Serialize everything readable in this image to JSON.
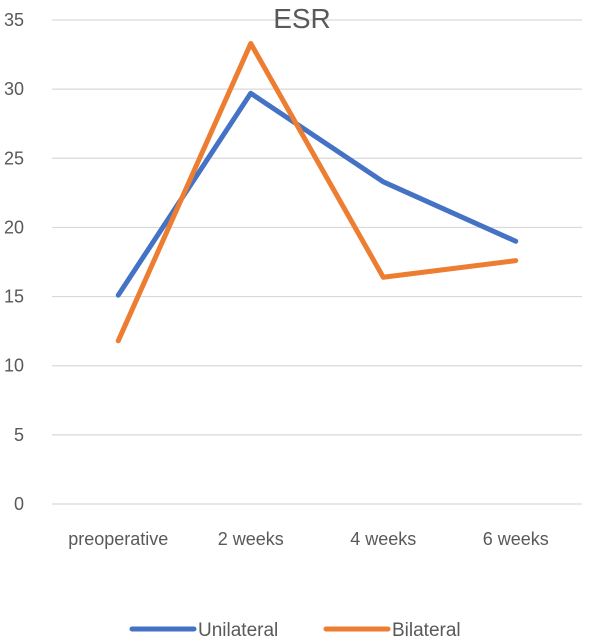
{
  "chart_data": {
    "type": "line",
    "title": "ESR",
    "xlabel": "",
    "ylabel": "",
    "categories": [
      "preoperative",
      "2 weeks",
      "4 weeks",
      "6 weeks"
    ],
    "series": [
      {
        "name": "Unilateral",
        "values": [
          15.1,
          29.7,
          23.3,
          19.0
        ],
        "color": "#4472c4"
      },
      {
        "name": "Bilateral",
        "values": [
          11.8,
          33.3,
          16.4,
          17.6
        ],
        "color": "#ed7d31"
      }
    ],
    "ylim": [
      0,
      35
    ],
    "yticks": [
      0,
      5,
      10,
      15,
      20,
      25,
      30,
      35
    ],
    "grid": true,
    "legend": "bottom"
  }
}
